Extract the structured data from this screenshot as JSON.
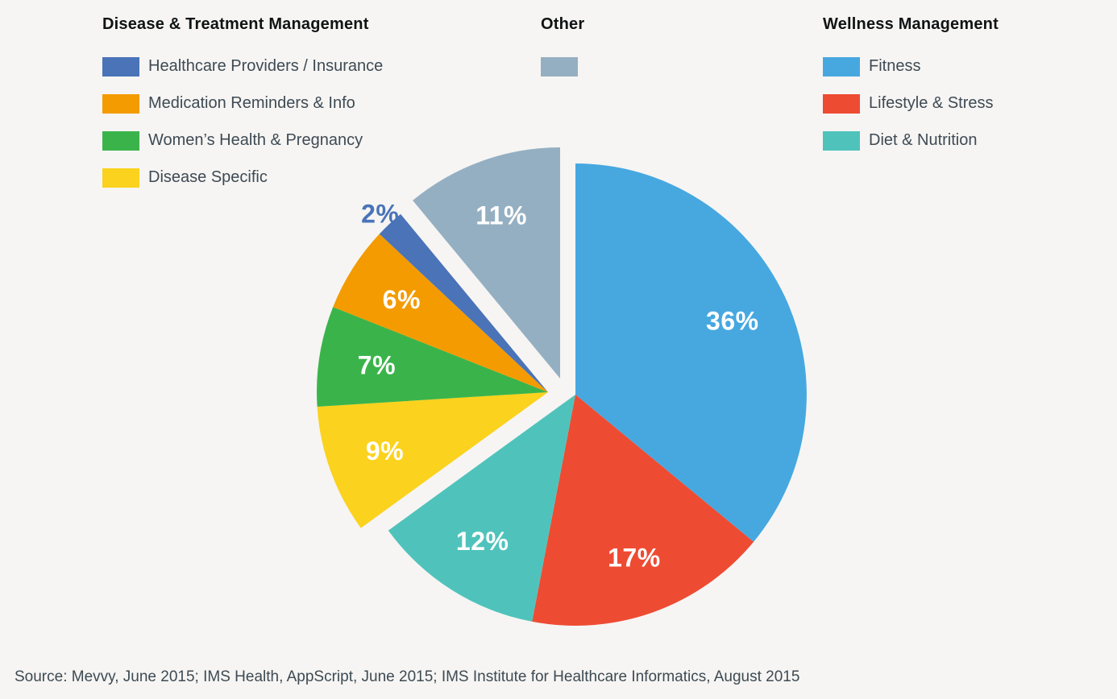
{
  "page": {
    "background": "#f6f5f3"
  },
  "legend": {
    "columns": [
      {
        "title": "Disease & Treatment Management",
        "items": [
          {
            "label": "Healthcare Providers / Insurance",
            "color": "#4a73b8"
          },
          {
            "label": "Medication Reminders & Info",
            "color": "#f39b00"
          },
          {
            "label": "Women’s Health & Pregnancy",
            "color": "#3ab44a"
          },
          {
            "label": "Disease Specific",
            "color": "#fbd21d"
          }
        ]
      },
      {
        "title": "Other",
        "items": [
          {
            "label": "",
            "color": "#95afc2"
          }
        ]
      },
      {
        "title": "Wellness Management",
        "items": [
          {
            "label": "Fitness",
            "color": "#47a8e0"
          },
          {
            "label": "Lifestyle & Stress",
            "color": "#ee4b33"
          },
          {
            "label": "Diet & Nutrition",
            "color": "#4fc3bb"
          }
        ]
      }
    ]
  },
  "chart_data": {
    "type": "pie",
    "start_angle_deg": 0,
    "direction": "clockwise",
    "legend_position": "top",
    "slices": [
      {
        "label": "Fitness",
        "value": 36,
        "display": "36%",
        "color": "#47a8e0",
        "group": "wellness"
      },
      {
        "label": "Lifestyle & Stress",
        "value": 17,
        "display": "17%",
        "color": "#ee4b33",
        "group": "wellness"
      },
      {
        "label": "Diet & Nutrition",
        "value": 12,
        "display": "12%",
        "color": "#4fc3bb",
        "group": "wellness"
      },
      {
        "label": "Disease Specific",
        "value": 9,
        "display": "9%",
        "color": "#fbd21d",
        "group": "disease_treatment"
      },
      {
        "label": "Women’s Health & Pregnancy",
        "value": 7,
        "display": "7%",
        "color": "#3ab44a",
        "group": "disease_treatment"
      },
      {
        "label": "Medication Reminders & Info",
        "value": 6,
        "display": "6%",
        "color": "#f39b00",
        "group": "disease_treatment"
      },
      {
        "label": "Healthcare Providers / Insurance",
        "value": 2,
        "display": "2%",
        "color": "#4a73b8",
        "group": "disease_treatment",
        "label_outside": true
      },
      {
        "label": "Other",
        "value": 11,
        "display": "11%",
        "color": "#95afc2",
        "group": "other"
      }
    ]
  },
  "footer": {
    "source": "Source: Mevvy, June 2015; IMS Health, AppScript, June 2015; IMS Institute for Healthcare Informatics, August 2015"
  }
}
